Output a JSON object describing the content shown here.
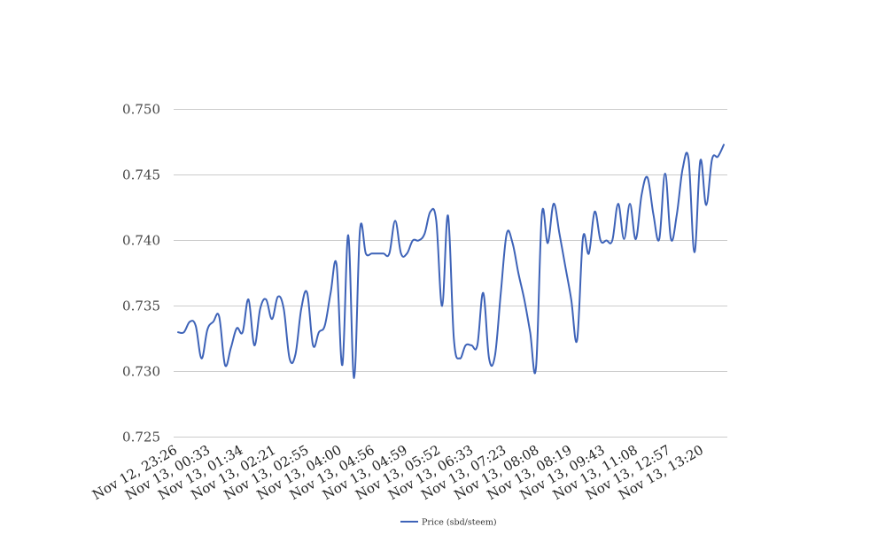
{
  "chart_data": {
    "type": "line",
    "title": "",
    "xlabel": "",
    "ylabel": "",
    "ylim": [
      0.725,
      0.75
    ],
    "yticks": [
      "0.725",
      "0.730",
      "0.735",
      "0.740",
      "0.745",
      "0.750"
    ],
    "yticks_values": [
      0.725,
      0.73,
      0.735,
      0.74,
      0.745,
      0.75
    ],
    "xtick_labels": [
      "Nov 12, 23:26",
      "Nov 13, 00:33",
      "Nov 13, 01:34",
      "Nov 13, 02:21",
      "Nov 13, 02:55",
      "Nov 13, 04:00",
      "Nov 13, 04:56",
      "Nov 13, 04:59",
      "Nov 13, 05:52",
      "Nov 13, 06:33",
      "Nov 13, 07:23",
      "Nov 13, 08:08",
      "Nov 13, 08:19",
      "Nov 13, 09:43",
      "Nov 13, 11:08",
      "Nov 13, 12:57",
      "Nov 13, 13:20"
    ],
    "grid": true,
    "legend_position": "bottom",
    "series": [
      {
        "name": "Price (sbd/steem)",
        "color": "#3e63b8",
        "values": [
          0.733,
          0.733,
          0.7338,
          0.7335,
          0.731,
          0.7332,
          0.7338,
          0.7342,
          0.7305,
          0.7318,
          0.7333,
          0.733,
          0.7355,
          0.732,
          0.7348,
          0.7355,
          0.734,
          0.7357,
          0.7348,
          0.731,
          0.7313,
          0.7348,
          0.736,
          0.732,
          0.733,
          0.7335,
          0.736,
          0.7382,
          0.7305,
          0.7404,
          0.7295,
          0.7408,
          0.739,
          0.739,
          0.739,
          0.739,
          0.739,
          0.7415,
          0.739,
          0.739,
          0.74,
          0.74,
          0.7405,
          0.7422,
          0.7415,
          0.735,
          0.7419,
          0.7325,
          0.731,
          0.732,
          0.732,
          0.732,
          0.736,
          0.731,
          0.7312,
          0.736,
          0.7405,
          0.7398,
          0.7375,
          0.7355,
          0.733,
          0.7303,
          0.742,
          0.7398,
          0.7428,
          0.7405,
          0.738,
          0.7355,
          0.7324,
          0.7402,
          0.739,
          0.7422,
          0.74,
          0.74,
          0.74,
          0.7428,
          0.7401,
          0.7428,
          0.7401,
          0.7435,
          0.7448,
          0.742,
          0.7401,
          0.7451,
          0.7401,
          0.742,
          0.7455,
          0.7462,
          0.7391,
          0.7461,
          0.7427,
          0.7462,
          0.7464,
          0.7473
        ]
      }
    ]
  }
}
